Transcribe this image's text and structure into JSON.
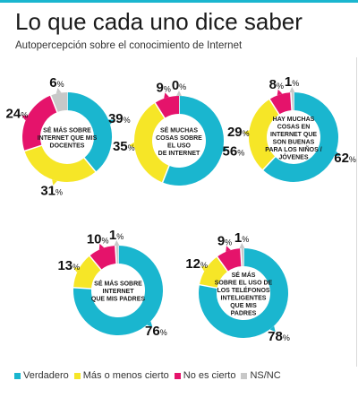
{
  "header": {
    "title": "Lo que cada uno dice saber",
    "subtitle": "Autopercepción sobre el conocimiento de Internet"
  },
  "colors": {
    "verdadero": "#1ab6cf",
    "mas_o_menos": "#f6e627",
    "no_es_cierto": "#e5136b",
    "ns_nc": "#c8c8c8"
  },
  "chart_data": [
    {
      "type": "pie",
      "center_label": [
        "SÉ MÁS SOBRE",
        "INTERNET QUE MIS",
        "DOCENTES"
      ],
      "categories": [
        "Verdadero",
        "Más o menos cierto",
        "No es cierto",
        "NS/NC"
      ],
      "values": [
        39,
        31,
        24,
        6
      ]
    },
    {
      "type": "pie",
      "center_label": [
        "SÉ MUCHAS",
        "COSAS SOBRE",
        "EL USO",
        "DE INTERNET"
      ],
      "categories": [
        "Verdadero",
        "Más o menos cierto",
        "No es cierto",
        "NS/NC"
      ],
      "values": [
        56,
        35,
        9,
        0
      ]
    },
    {
      "type": "pie",
      "center_label": [
        "HAY MUCHAS",
        "COSAS EN",
        "INTERNET QUE",
        "SON BUENAS",
        "PARA LOS NIÑOS /",
        "JÓVENES"
      ],
      "categories": [
        "Verdadero",
        "Más o menos cierto",
        "No es cierto",
        "NS/NC"
      ],
      "values": [
        62,
        29,
        8,
        1
      ]
    },
    {
      "type": "pie",
      "center_label": [
        "SÉ MÁS SOBRE",
        "INTERNET",
        "QUE MIS PADRES"
      ],
      "categories": [
        "Verdadero",
        "Más o menos cierto",
        "No es cierto",
        "NS/NC"
      ],
      "values": [
        76,
        13,
        10,
        1
      ]
    },
    {
      "type": "pie",
      "center_label": [
        "SÉ MÁS",
        "SOBRE EL USO DE",
        "LOS TELÉFONOS",
        "INTELIGENTES",
        "QUE MIS",
        "PADRES"
      ],
      "categories": [
        "Verdadero",
        "Más o menos cierto",
        "No es cierto",
        "NS/NC"
      ],
      "values": [
        78,
        12,
        9,
        1
      ]
    }
  ],
  "legend": {
    "verdadero": "Verdadero",
    "mas_o_menos": "Más o menos cierto",
    "no_es_cierto": "No es cierto",
    "ns_nc": "NS/NC"
  }
}
